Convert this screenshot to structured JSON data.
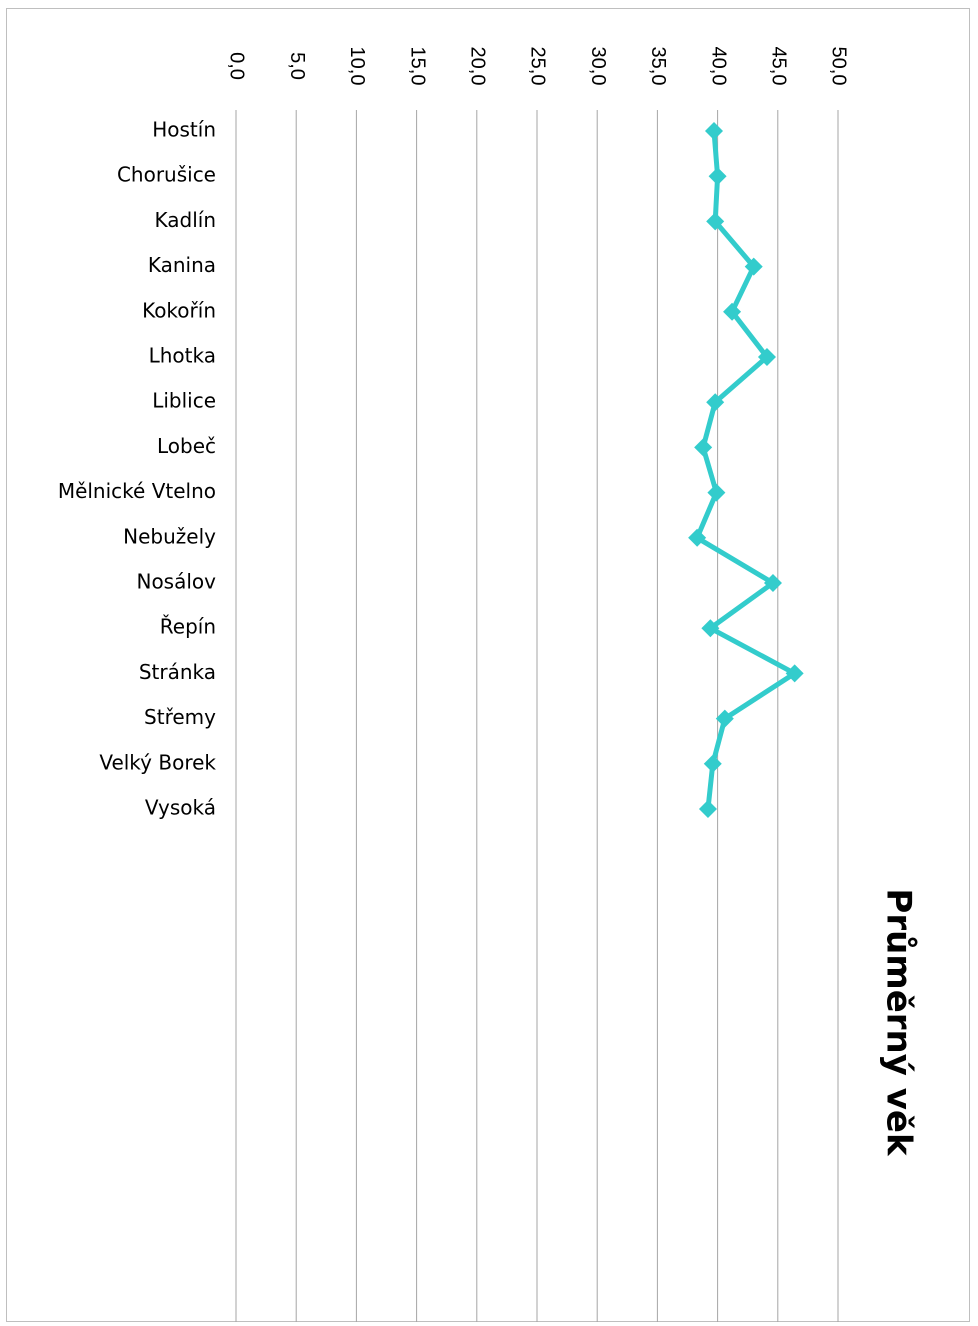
{
  "chart_data": {
    "type": "line",
    "title": "Průměrný věk",
    "categories": [
      "Hostín",
      "Chorušice",
      "Kadlín",
      "Kanina",
      "Kokořín",
      "Lhotka",
      "Liblice",
      "Lobeč",
      "Mělnické Vtelno",
      "Nebužely",
      "Nosálov",
      "Řepín",
      "Stránka",
      "Střemy",
      "Velký Borek",
      "Vysoká"
    ],
    "series": [
      {
        "values": [
          39.7,
          40.0,
          39.8,
          43.0,
          41.2,
          44.1,
          39.8,
          38.8,
          39.9,
          38.3,
          44.6,
          39.4,
          46.4,
          40.6,
          39.6,
          39.2
        ]
      }
    ],
    "xlim": [
      0,
      50
    ],
    "tick_labels": [
      "0,0",
      "5,0",
      "10,0",
      "15,0",
      "20,0",
      "25,0",
      "30,0",
      "35,0",
      "40,0",
      "45,0",
      "50,0"
    ],
    "grid": true,
    "legend": "none",
    "colors": {
      "series": "#33cccc",
      "grid": "#a6a6a6"
    }
  }
}
